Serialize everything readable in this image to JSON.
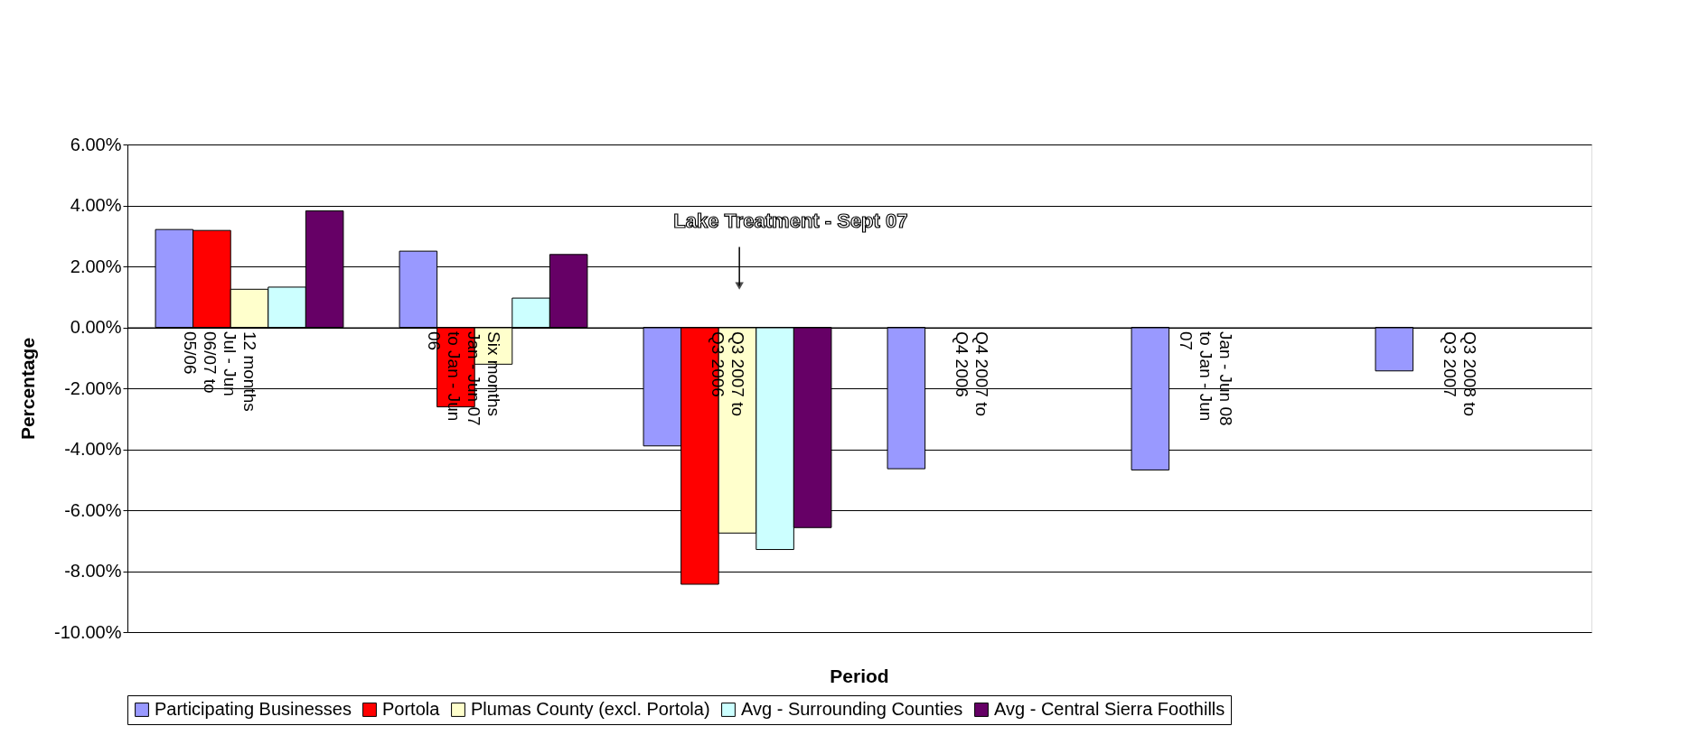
{
  "chart_data": {
    "type": "bar",
    "xlabel": "Period",
    "ylabel": "Percentage",
    "categories": [
      "12 months Jul - Jun 06/07 to 05/06",
      "Six months Jan - Jun 07 to Jan - Jun 06",
      "Q3 2007 to Q3 2006",
      "Q4 2007 to Q4 2006",
      "Jan - Jun 08 to Jan - Jun 07",
      "Q3 2008 to Q3 2007"
    ],
    "series": [
      {
        "name": "Participating Businesses",
        "color": "#9999ff",
        "values": [
          3.21,
          2.5,
          -3.89,
          -4.64,
          -4.68,
          -1.43
        ]
      },
      {
        "name": "Portola",
        "color": "#ff0000",
        "values": [
          3.18,
          -2.61,
          -8.43,
          null,
          null,
          null
        ]
      },
      {
        "name": "Plumas County (excl. Portola)",
        "color": "#ffffcc",
        "values": [
          1.25,
          -1.21,
          -6.75,
          null,
          null,
          null
        ]
      },
      {
        "name": "Avg - Surrounding Counties",
        "color": "#ccffff",
        "values": [
          1.32,
          0.96,
          -7.29,
          null,
          null,
          null
        ]
      },
      {
        "name": "Avg - Central Sierra Foothills",
        "color": "#660066",
        "values": [
          3.82,
          2.39,
          -6.57,
          null,
          null,
          null
        ]
      }
    ],
    "ylim": [
      -10,
      6
    ],
    "yticks": [
      {
        "value": -10,
        "label": "-10.00%"
      },
      {
        "value": -8,
        "label": "-8.00%"
      },
      {
        "value": -6,
        "label": "-6.00%"
      },
      {
        "value": -4,
        "label": "-4.00%"
      },
      {
        "value": -2,
        "label": "-2.00%"
      },
      {
        "value": 0,
        "label": "0.00%"
      },
      {
        "value": 2,
        "label": "2.00%"
      },
      {
        "value": 4,
        "label": "4.00%"
      },
      {
        "value": 6,
        "label": "6.00%"
      }
    ],
    "grid": "y",
    "legend": "bottom",
    "annotations": [
      "Lake Treatment - Sept 07"
    ]
  }
}
